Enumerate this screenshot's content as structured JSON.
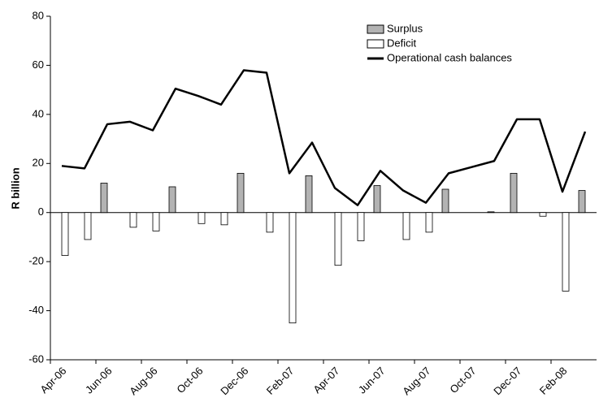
{
  "chart_data": {
    "type": "bar-line",
    "y_label": "R billion",
    "categories": [
      "Apr-06",
      null,
      "Jun-06",
      null,
      "Aug-06",
      null,
      "Oct-06",
      null,
      "Dec-06",
      null,
      "Feb-07",
      null,
      "Apr-07",
      null,
      "Jun-07",
      null,
      "Aug-07",
      null,
      "Oct-07",
      null,
      "Dec-07",
      null,
      "Feb-08",
      null
    ],
    "series": [
      {
        "name": "Surplus",
        "type": "bar",
        "color": "#b3b3b3",
        "values": [
          null,
          null,
          12,
          null,
          null,
          10.5,
          null,
          null,
          16,
          null,
          null,
          15,
          null,
          null,
          11,
          null,
          null,
          9.5,
          null,
          0.3,
          16,
          null,
          null,
          9
        ]
      },
      {
        "name": "Deficit",
        "type": "bar",
        "color": "#ffffff",
        "values": [
          -17.5,
          -11,
          null,
          -6,
          -7.5,
          null,
          -4.5,
          -5,
          null,
          -8,
          -45,
          null,
          -21.5,
          -11.5,
          null,
          -11,
          -8,
          null,
          null,
          null,
          null,
          -1.5,
          -32,
          null
        ]
      },
      {
        "name": "Operational cash balances",
        "type": "line",
        "color": "#000000",
        "values": [
          19,
          18,
          36,
          37,
          33.5,
          50.5,
          47.5,
          44,
          58,
          57,
          16,
          28.5,
          10,
          3,
          17,
          9,
          4,
          16,
          18.5,
          21,
          38,
          38,
          8.5,
          33
        ]
      }
    ],
    "ylim": [
      -60,
      80
    ],
    "yticks": [
      -60,
      -40,
      -20,
      0,
      20,
      40,
      60,
      80
    ],
    "legend": "top-right"
  }
}
